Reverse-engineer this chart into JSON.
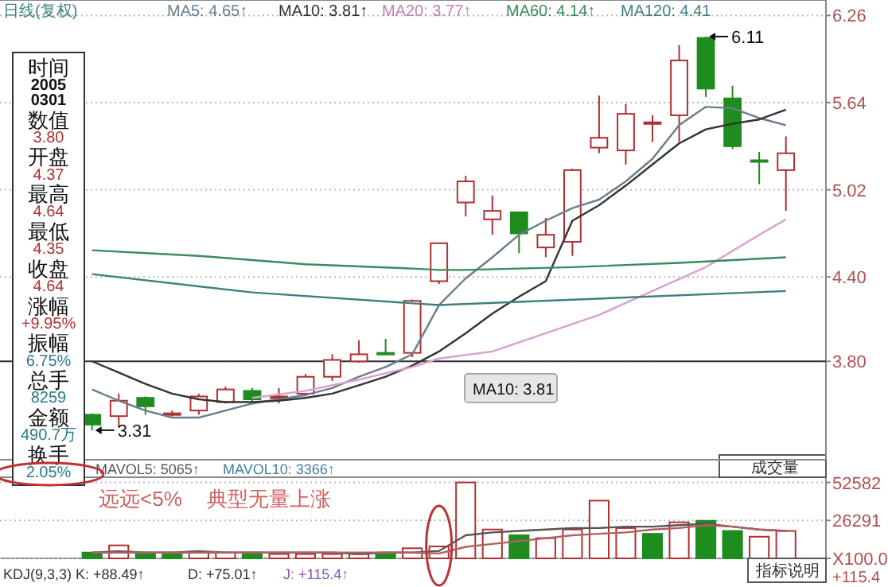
{
  "chart_data": [
    {
      "type": "candlestick",
      "categories": [
        null,
        null,
        null,
        null,
        null,
        null,
        null,
        null,
        null,
        null,
        null,
        null,
        null,
        null,
        null,
        null,
        null,
        null,
        null,
        null,
        null,
        null,
        null,
        null,
        null,
        null,
        null
      ],
      "ohlc": [
        [
          3.42,
          3.43,
          3.31,
          3.35
        ],
        [
          3.41,
          3.57,
          3.33,
          3.52
        ],
        [
          3.54,
          3.55,
          3.42,
          3.48
        ],
        [
          3.43,
          3.45,
          3.41,
          3.43
        ],
        [
          3.45,
          3.57,
          3.42,
          3.55
        ],
        [
          3.51,
          3.62,
          3.5,
          3.6
        ],
        [
          3.59,
          3.61,
          3.51,
          3.53
        ],
        [
          3.54,
          3.61,
          3.5,
          3.55
        ],
        [
          3.57,
          3.71,
          3.55,
          3.69
        ],
        [
          3.69,
          3.85,
          3.66,
          3.81
        ],
        [
          3.8,
          3.95,
          3.79,
          3.85
        ],
        [
          3.86,
          3.96,
          3.85,
          3.85
        ],
        [
          3.86,
          4.24,
          3.83,
          4.23
        ],
        [
          4.37,
          4.64,
          4.35,
          4.64
        ],
        [
          4.93,
          5.12,
          4.83,
          5.08
        ],
        [
          4.81,
          4.98,
          4.7,
          4.87
        ],
        [
          4.86,
          4.86,
          4.57,
          4.71
        ],
        [
          4.61,
          4.82,
          4.54,
          4.7
        ],
        [
          4.65,
          5.17,
          4.55,
          5.16
        ],
        [
          5.32,
          5.69,
          5.28,
          5.39
        ],
        [
          5.3,
          5.63,
          5.2,
          5.56
        ],
        [
          5.5,
          5.55,
          5.36,
          5.5
        ],
        [
          5.55,
          6.05,
          5.36,
          5.94
        ],
        [
          6.1,
          6.11,
          5.68,
          5.74
        ],
        [
          5.67,
          5.76,
          5.31,
          5.33
        ],
        [
          5.23,
          5.29,
          5.06,
          5.22
        ],
        [
          5.16,
          5.4,
          4.87,
          5.28
        ]
      ],
      "series": [
        {
          "type": "line",
          "color": "#6a7d8e",
          "values": [
            3.6,
            3.52,
            3.45,
            3.4,
            3.4,
            3.45,
            3.5,
            3.53,
            3.56,
            3.61,
            3.69,
            3.76,
            3.85,
            4.2,
            4.39,
            4.54,
            4.7,
            4.8,
            4.89,
            4.95,
            5.08,
            5.24,
            5.48,
            5.61,
            5.6,
            5.53,
            5.48
          ]
        },
        {
          "type": "line",
          "color": "#333333",
          "values": [
            3.8,
            3.72,
            3.64,
            3.57,
            3.53,
            3.51,
            3.51,
            3.52,
            3.54,
            3.57,
            3.63,
            3.69,
            3.77,
            3.87,
            4.0,
            4.14,
            4.26,
            4.37,
            4.8,
            4.91,
            5.05,
            5.2,
            5.35,
            5.45,
            5.49,
            5.52,
            5.59
          ]
        },
        {
          "type": "line",
          "color": "#d9a0d0",
          "values": [
            null,
            null,
            null,
            null,
            null,
            null,
            3.54,
            null,
            3.59,
            null,
            3.67,
            null,
            3.76,
            3.82,
            null,
            3.87,
            null,
            4.0,
            null,
            4.13,
            null,
            4.3,
            null,
            4.47,
            null,
            4.7,
            4.81
          ]
        },
        {
          "type": "line",
          "color": "#3a8a5a",
          "values": [
            4.59,
            null,
            null,
            null,
            4.55,
            null,
            null,
            null,
            4.49,
            null,
            null,
            null,
            4.46,
            4.45,
            4.45,
            null,
            null,
            null,
            4.47,
            null,
            null,
            null,
            4.5,
            null,
            null,
            null,
            4.54
          ]
        },
        {
          "type": "line",
          "color": "#3f7f7f",
          "values": [
            4.42,
            null,
            null,
            null,
            null,
            null,
            4.29,
            null,
            null,
            null,
            null,
            null,
            null,
            4.2,
            null,
            null,
            null,
            null,
            null,
            null,
            null,
            null,
            null,
            null,
            null,
            null,
            4.3
          ]
        }
      ],
      "ylim": [
        3.1,
        6.37
      ],
      "yticks": [
        {
          "value": 3.8,
          "label": "3.80"
        },
        {
          "value": 4.4,
          "label": "4.40"
        },
        5.02,
        5.64,
        6.26
      ],
      "grid": "y",
      "ref_lines": [
        {
          "axis": "y",
          "value": 3.8,
          "color": "#333333"
        }
      ],
      "annotations": [
        "日线(复权)",
        "MA5: 4.65↑",
        "MA10: 3.81↑",
        "MA20: 3.77↑",
        "MA60: 4.14↑",
        "MA120: 4.41",
        "时间",
        "2005",
        "0301",
        "数值",
        "3.80",
        "开盘",
        "4.37",
        "最高",
        "4.64",
        "最低",
        "4.35",
        "收盘",
        "4.64",
        "涨幅",
        "+9.95%",
        "振幅",
        "6.75%",
        "总手",
        "8259",
        "金额",
        "490.7万",
        "换手",
        "2.05%",
        "6.11",
        "3.31",
        "MA10: 3.81"
      ]
    },
    {
      "type": "bar",
      "categories": [
        null,
        null,
        null,
        null,
        null,
        null,
        null,
        null,
        null,
        null,
        null,
        null,
        null,
        null,
        null,
        null,
        null,
        null,
        null,
        null,
        null,
        null,
        null,
        null,
        null,
        null,
        null
      ],
      "values": [
        4000,
        9000,
        4000,
        4000,
        4000,
        4000,
        4000,
        3000,
        3000,
        3000,
        3000,
        4000,
        7000,
        8259,
        52582,
        20000,
        16000,
        14000,
        20000,
        40000,
        21000,
        17000,
        25000,
        26000,
        19000,
        15000,
        19000
      ],
      "colors": [
        "#1e8c1e",
        "#b03030",
        "#1e8c1e",
        "#1e8c1e",
        "#b03030",
        "#b03030",
        "#1e8c1e",
        "#b03030",
        "#b03030",
        "#b03030",
        "#b03030",
        "#1e8c1e",
        "#b03030",
        "#b03030",
        "#b03030",
        "#b03030",
        "#1e8c1e",
        "#b03030",
        "#b03030",
        "#b03030",
        "#b03030",
        "#1e8c1e",
        "#b03030",
        "#1e8c1e",
        "#1e8c1e",
        "#b03030",
        "#b03030"
      ],
      "series": [
        {
          "type": "line",
          "color": "#555555",
          "values": [
            4000,
            5000,
            4000,
            4000,
            5000,
            4000,
            4000,
            4000,
            4000,
            4000,
            3000,
            4000,
            4000,
            5065,
            16000,
            18000,
            19000,
            20000,
            21000,
            21000,
            22000,
            22000,
            23000,
            24000,
            22000,
            20000,
            19000
          ]
        },
        {
          "type": "line",
          "color": "#b06060",
          "values": [
            4000,
            4000,
            4000,
            4000,
            4000,
            4000,
            4000,
            4000,
            4000,
            4000,
            4000,
            4000,
            4000,
            3366,
            8000,
            10000,
            12000,
            14000,
            16000,
            17000,
            18000,
            20000,
            21000,
            23000,
            22000,
            20000,
            19000
          ]
        }
      ],
      "ylim": [
        0,
        56200
      ],
      "yticks": [
        {
          "value": 0,
          "label": "X100.0"
        },
        26291,
        52582
      ],
      "grid": "y",
      "annotations": [
        "MAVOL5: 5065↑",
        "MAVOL10: 3366↑",
        "远远<5%",
        "典型无量上涨",
        "成交量",
        "指标说明",
        "KDJ(9,3,3) K: +88.49↑",
        "D: +75.01↑",
        "J: +115.4↑",
        "+115.4"
      ]
    }
  ]
}
